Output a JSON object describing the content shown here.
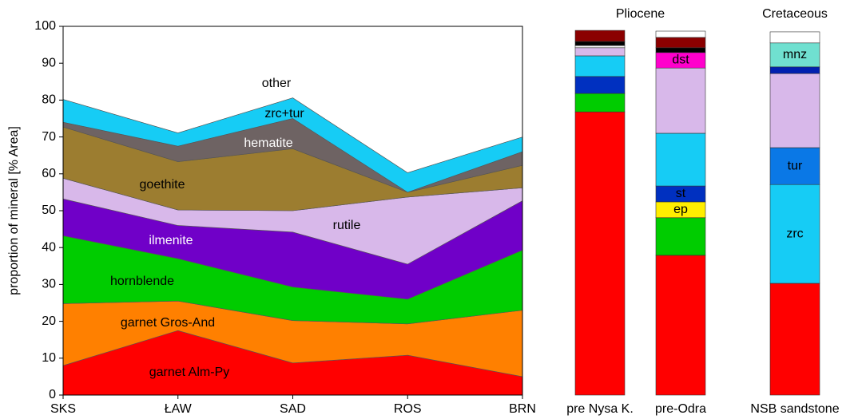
{
  "chart_data": [
    {
      "type": "stacked-area",
      "y_label": "proportion of mineral [% Area]",
      "categories": [
        "SKS",
        "ŁAW",
        "SAD",
        "ROS",
        "BRN"
      ],
      "ylim": [
        0,
        100
      ],
      "yticks": [
        0,
        10,
        20,
        30,
        40,
        50,
        60,
        70,
        80,
        90,
        100
      ],
      "series": [
        {
          "name": "garnet Alm-Py",
          "color": "#ff0000",
          "values": [
            8,
            17.5,
            8.7,
            10.8,
            5
          ]
        },
        {
          "name": "garnet Gros-And",
          "color": "#ff8000",
          "values": [
            16.8,
            8,
            11.5,
            8.5,
            18
          ]
        },
        {
          "name": "hornblende",
          "color": "#00cc00",
          "values": [
            18.4,
            11.5,
            9.1,
            6.7,
            16.3
          ]
        },
        {
          "name": "ilmenite",
          "color": "#7000c8",
          "values": [
            10,
            9,
            14.9,
            9.5,
            13.4
          ]
        },
        {
          "name": "rutile",
          "color": "#d8b8ea",
          "values": [
            5.6,
            4.2,
            5.8,
            18.2,
            3.5
          ]
        },
        {
          "name": "goethite",
          "color": "#9c7d30",
          "values": [
            13.9,
            13.1,
            16.8,
            1.3,
            6.1
          ]
        },
        {
          "name": "hematite",
          "color": "#6e6363",
          "values": [
            1.3,
            4.2,
            8.2,
            0,
            3.7
          ]
        },
        {
          "name": "zrc+tur",
          "color": "#16ccf5",
          "values": [
            6.2,
            3.6,
            5.6,
            5.3,
            4
          ]
        },
        {
          "name": "other",
          "color": "#ffffff",
          "values": [
            19.8,
            28.9,
            19.4,
            39.7,
            30
          ]
        }
      ]
    },
    {
      "type": "stacked-bar",
      "ylim": [
        0,
        100
      ],
      "groups": [
        {
          "title": "Pliocene",
          "bars": [
            {
              "category": "pre Nysa K.",
              "segments": [
                {
                  "value": 76.8,
                  "color": "#ff0000"
                },
                {
                  "value": 5,
                  "color": "#00cc00"
                },
                {
                  "value": 4.6,
                  "color": "#0030c0"
                },
                {
                  "value": 5.6,
                  "color": "#16ccf5"
                },
                {
                  "value": 2.2,
                  "color": "#d8b8ea"
                },
                {
                  "value": 0.6,
                  "color": "#ffffff"
                },
                {
                  "value": 1.1,
                  "color": "#000000"
                },
                {
                  "value": 3,
                  "color": "#8b0000"
                }
              ]
            },
            {
              "category": "pre-Odra",
              "segments": [
                {
                  "value": 37.9,
                  "color": "#ff0000"
                },
                {
                  "value": 10.2,
                  "color": "#00cc00"
                },
                {
                  "value": 4.3,
                  "color": "#ffee00",
                  "label": "ep"
                },
                {
                  "value": 4.3,
                  "color": "#0030c0",
                  "label": "st"
                },
                {
                  "value": 14.3,
                  "color": "#16ccf5"
                },
                {
                  "value": 17.7,
                  "color": "#d8b8ea"
                },
                {
                  "value": 4.2,
                  "color": "#ff00cc",
                  "label": "dst"
                },
                {
                  "value": 1.3,
                  "color": "#000000"
                },
                {
                  "value": 2.8,
                  "color": "#8b0000"
                },
                {
                  "value": 1.7,
                  "color": "#ffffff"
                }
              ]
            }
          ]
        },
        {
          "title": "Cretaceous",
          "bars": [
            {
              "category": "NSB sandstone",
              "segments": [
                {
                  "value": 30.3,
                  "color": "#ff0000"
                },
                {
                  "value": 26.8,
                  "color": "#16ccf5",
                  "label": "zrc"
                },
                {
                  "value": 10,
                  "color": "#0a78e6",
                  "label": "tur"
                },
                {
                  "value": 20.1,
                  "color": "#d8b8ea"
                },
                {
                  "value": 1.8,
                  "color": "#0020b0"
                },
                {
                  "value": 6.5,
                  "color": "#70e0d0",
                  "label": "mnz"
                },
                {
                  "value": 3,
                  "color": "#ffffff"
                }
              ]
            }
          ]
        }
      ]
    }
  ]
}
